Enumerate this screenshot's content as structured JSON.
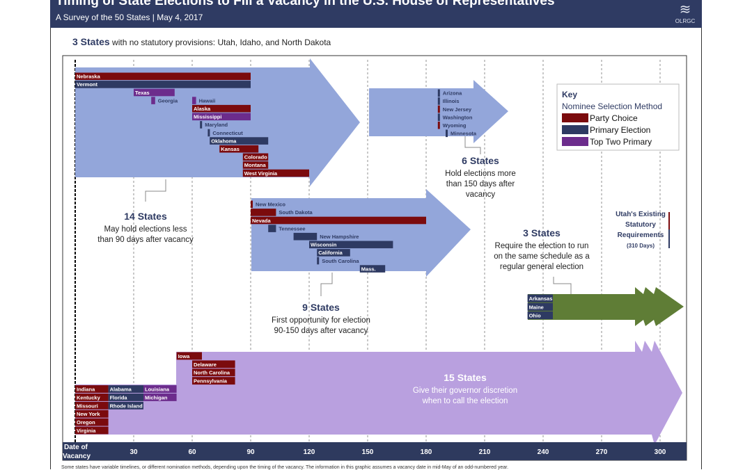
{
  "header": {
    "title": "Timing of State Elections to Fill a Vacancy in the U.S. House of Representatives",
    "subtitle": "A Survey of the 50 States  | May 4, 2017",
    "logo_text": "OLRGC"
  },
  "no_provisions": {
    "count": "3 States",
    "text": "with no statutory provisions: Utah, Idaho, and North Dakota"
  },
  "colors": {
    "party": "#7b0b0d",
    "primary": "#2e3a62",
    "top2": "#6c2c8c",
    "arrow_blue": "#93a6da",
    "purple": "#b9a0df",
    "green": "#5f7d36",
    "axis": "#2e3a5e"
  },
  "key": {
    "title": "Key",
    "subtitle": "Nominee Selection Method",
    "items": [
      {
        "method": "party",
        "label": "Party Choice"
      },
      {
        "method": "primary",
        "label": "Primary Election"
      },
      {
        "method": "top2",
        "label": "Top Two Primary"
      }
    ]
  },
  "axis": {
    "label_line1": "Date of",
    "label_line2": "Vacancy",
    "ticks": [
      30,
      60,
      90,
      120,
      150,
      180,
      210,
      240,
      270,
      300
    ]
  },
  "groups": [
    {
      "count": "14 States",
      "desc1": "May hold elections less",
      "desc2": "than 90 days after  vacancy",
      "rows": [
        [
          {
            "state": "Nebraska",
            "method": "party",
            "start": 0,
            "end": 90
          }
        ],
        [
          {
            "state": "Vermont",
            "method": "primary",
            "start": 0,
            "end": 90
          }
        ],
        [
          {
            "state": "Texas",
            "method": "top2",
            "start": 30,
            "end": 51
          }
        ],
        [
          {
            "state": "Georgia",
            "method": "top2",
            "start": 39,
            "end": 41,
            "outside": true
          },
          {
            "state": "Hawaii",
            "method": "top2",
            "start": 60,
            "end": 62,
            "outside": true
          }
        ],
        [
          {
            "state": "Alaska",
            "method": "party",
            "start": 60,
            "end": 90
          }
        ],
        [
          {
            "state": "Mississippi",
            "method": "top2",
            "start": 60,
            "end": 90
          }
        ],
        [
          {
            "state": "Maryland",
            "method": "primary",
            "start": 64,
            "end": 65,
            "outside": true
          }
        ],
        [
          {
            "state": "Connecticut",
            "method": "primary",
            "start": 68,
            "end": 69,
            "outside": true
          }
        ],
        [
          {
            "state": "Oklahoma",
            "method": "primary",
            "start": 69,
            "end": 99
          }
        ],
        [
          {
            "state": "Kansas",
            "method": "party",
            "start": 74,
            "end": 94
          }
        ],
        [
          {
            "state": "Colorado",
            "method": "party",
            "start": 86,
            "end": 99
          }
        ],
        [
          {
            "state": "Montana",
            "method": "party",
            "start": 86,
            "end": 99
          }
        ],
        [
          {
            "state": "West Virginia",
            "method": "party",
            "start": 86,
            "end": 120
          }
        ]
      ]
    },
    {
      "count": "6 States",
      "desc1": "Hold elections more",
      "desc2": "than 150 days after",
      "desc3": "vacancy",
      "rows": [
        [
          {
            "state": "Arizona",
            "method": "primary",
            "start": 186,
            "end": 187,
            "outside": true
          }
        ],
        [
          {
            "state": "Illinois",
            "method": "primary",
            "start": 186,
            "end": 187,
            "outside": true
          }
        ],
        [
          {
            "state": "New Jersey",
            "method": "party",
            "start": 186,
            "end": 187,
            "outside": true
          }
        ],
        [
          {
            "state": "Washington",
            "method": "primary",
            "start": 186,
            "end": 187,
            "outside": true
          }
        ],
        [
          {
            "state": "Wyoming",
            "method": "party",
            "start": 186,
            "end": 187,
            "outside": true
          }
        ],
        [
          {
            "state": "Minnesota",
            "method": "primary",
            "start": 190,
            "end": 191,
            "outside": true
          }
        ]
      ]
    },
    {
      "count": "9 States",
      "desc1": "First  opportunity for election",
      "desc2": "90-150 days after vacancy",
      "rows": [
        [
          {
            "state": "New Mexico",
            "method": "party",
            "start": 90,
            "end": 91,
            "outside": true
          }
        ],
        [
          {
            "state": "South Dakota",
            "method": "party",
            "start": 90,
            "end": 103,
            "outside": true
          }
        ],
        [
          {
            "state": "Nevada",
            "method": "party",
            "start": 90,
            "end": 180
          }
        ],
        [
          {
            "state": "Tennessee",
            "method": "primary",
            "start": 99,
            "end": 103,
            "outside": true
          }
        ],
        [
          {
            "state": "New Hampshire",
            "method": "primary",
            "start": 112,
            "end": 124,
            "outside": true
          }
        ],
        [
          {
            "state": "Wisconsin",
            "method": "primary",
            "start": 120,
            "end": 163
          }
        ],
        [
          {
            "state": "California",
            "method": "primary",
            "start": 124,
            "end": 141
          }
        ],
        [
          {
            "state": "South Carolina",
            "method": "primary",
            "start": 124,
            "end": 125,
            "outside": true
          }
        ],
        [
          {
            "state": "Mass.",
            "method": "primary",
            "start": 146,
            "end": 159
          }
        ]
      ]
    },
    {
      "count": "3 States",
      "desc1": "Require the election to run",
      "desc2": "on the same schedule as a",
      "desc3": "regular general election",
      "rows": [
        [
          {
            "state": "Arkansas",
            "method": "primary",
            "start": 232,
            "end": 245
          }
        ],
        [
          {
            "state": "Maine",
            "method": "primary",
            "start": 232,
            "end": 245
          }
        ],
        [
          {
            "state": "Ohio",
            "method": "primary",
            "start": 232,
            "end": 245
          }
        ]
      ]
    },
    {
      "count": "15 States",
      "desc1": "Give their governor  discretion",
      "desc2": "when to call the election",
      "rows": [
        [
          {
            "state": "Iowa",
            "method": "party",
            "start": 52,
            "end": 65
          }
        ],
        [
          {
            "state": "Delaware",
            "method": "party",
            "start": 60,
            "end": 82
          }
        ],
        [
          {
            "state": "North Carolina",
            "method": "party",
            "start": 60,
            "end": 82
          }
        ],
        [
          {
            "state": "Pennsylvania",
            "method": "party",
            "start": 60,
            "end": 82
          }
        ],
        [
          {
            "state": "Indiana",
            "method": "party",
            "start": 0,
            "end": 17
          },
          {
            "state": "Alabama",
            "method": "primary",
            "start": 17,
            "end": 35
          },
          {
            "state": "Louisiana",
            "method": "top2",
            "start": 35,
            "end": 52
          }
        ],
        [
          {
            "state": "Kentucky",
            "method": "party",
            "start": 0,
            "end": 17
          },
          {
            "state": "Florida",
            "method": "primary",
            "start": 17,
            "end": 35
          },
          {
            "state": "Michigan",
            "method": "top2",
            "start": 35,
            "end": 52
          }
        ],
        [
          {
            "state": "Missouri",
            "method": "party",
            "start": 0,
            "end": 17
          },
          {
            "state": "Rhode Island",
            "method": "primary",
            "start": 17,
            "end": 35
          }
        ],
        [
          {
            "state": "New York",
            "method": "party",
            "start": 0,
            "end": 17
          }
        ],
        [
          {
            "state": "Oregon",
            "method": "party",
            "start": 0,
            "end": 17
          }
        ],
        [
          {
            "state": "Virginia",
            "method": "party",
            "start": 0,
            "end": 17
          }
        ]
      ]
    }
  ],
  "utah": {
    "line1": "Utah's Existing",
    "line2": "Statutory",
    "line3": "Requirements",
    "line4": "(310 Days)"
  },
  "footnote": "Some states have variable timelines, or different nomination methods, depending upon the timing of the vacancy. The information in this graphic assumes a vacancy date in mid-May of an odd-numbered year."
}
